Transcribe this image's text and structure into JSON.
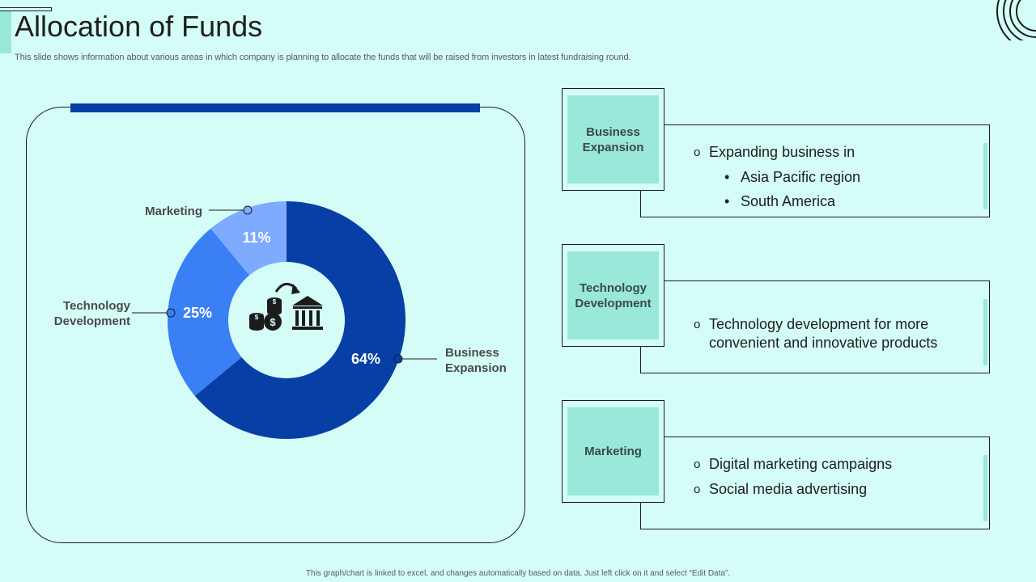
{
  "title": "Allocation of Funds",
  "subtitle": "This slide shows information about various areas in which company is planning to allocate the funds that will be raised from investors in latest fundraising round.",
  "footnote": "This graph/chart is linked to excel, and changes automatically based on data. Just left click on it and select “Edit Data”.",
  "center_icon": "money-to-bank-icon",
  "colors": {
    "background": "#d4fdf7",
    "accent_mint": "#9ae8d9",
    "business_expansion": "#073fa7",
    "technology_development": "#3b7ff5",
    "marketing": "#7eaaff"
  },
  "chart_data": {
    "type": "pie",
    "variant": "donut",
    "title": "",
    "slices": [
      {
        "label": "Business Expansion",
        "value": 64,
        "display": "64%",
        "color": "#073fa7"
      },
      {
        "label": "Technology Development",
        "value": 25,
        "display": "25%",
        "color": "#3b7ff5"
      },
      {
        "label": "Marketing",
        "value": 11,
        "display": "11%",
        "color": "#7eaaff"
      }
    ],
    "start_angle": "12 o'clock",
    "direction": "clockwise",
    "legend": "callout labels"
  },
  "categories": [
    {
      "name": "Business Expansion",
      "tag_lines": [
        "Business",
        "Expansion"
      ],
      "items": [
        {
          "text": "Expanding business in",
          "level": 1
        },
        {
          "text": "Asia Pacific region",
          "level": 2
        },
        {
          "text": "South America",
          "level": 2
        }
      ]
    },
    {
      "name": "Technology Development",
      "tag_lines": [
        "Technology",
        "Development"
      ],
      "items": [
        {
          "text": "Technology development for more convenient and innovative products",
          "level": 1
        }
      ]
    },
    {
      "name": "Marketing",
      "tag_lines": [
        "Marketing"
      ],
      "items": [
        {
          "text": "Digital marketing campaigns",
          "level": 1
        },
        {
          "text": "Social media advertising",
          "level": 1
        }
      ]
    }
  ]
}
